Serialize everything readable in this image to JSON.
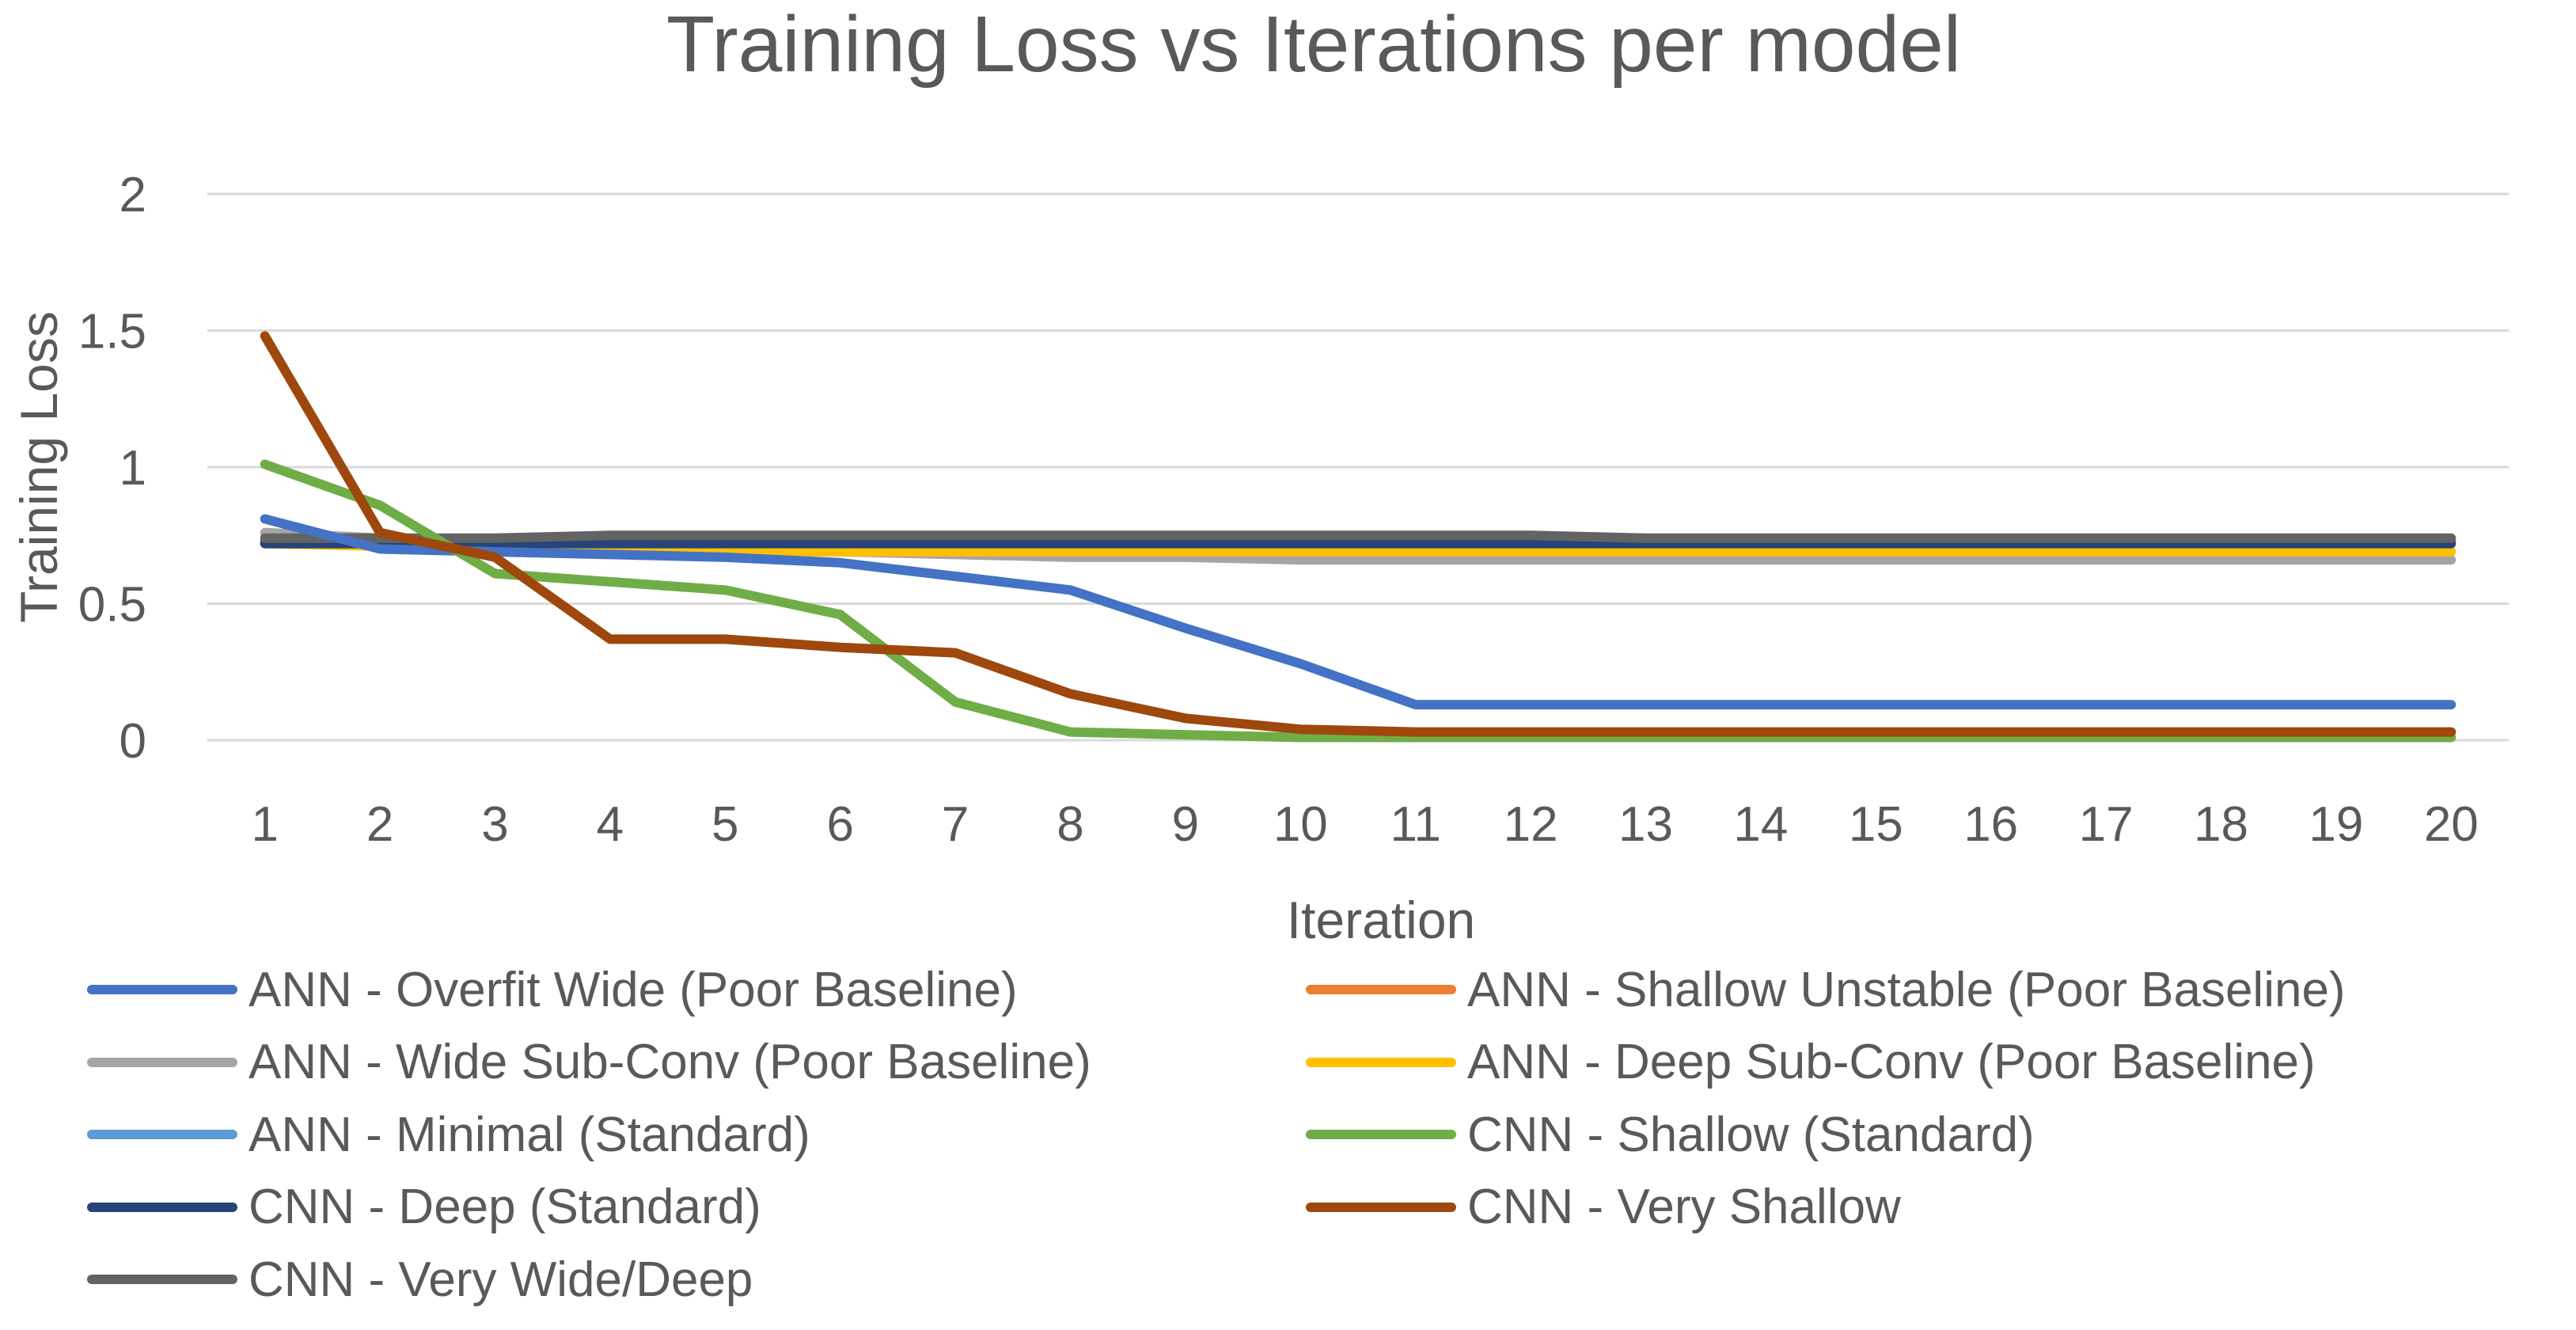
{
  "chart_data": {
    "type": "line",
    "title": "Training Loss vs Iterations per model",
    "xlabel": "Iteration",
    "ylabel": "Training Loss",
    "ylim": [
      0,
      2
    ],
    "yticks": [
      "0",
      "0.5",
      "1",
      "1.5",
      "2"
    ],
    "categories": [
      "1",
      "2",
      "3",
      "4",
      "5",
      "6",
      "7",
      "8",
      "9",
      "10",
      "11",
      "12",
      "13",
      "14",
      "15",
      "16",
      "17",
      "18",
      "19",
      "20"
    ],
    "grid": true,
    "legend_position": "bottom",
    "series": [
      {
        "name": "ANN - Overfit Wide (Poor Baseline)",
        "color": "#4472C4",
        "values": [
          0.81,
          0.7,
          0.69,
          0.68,
          0.67,
          0.65,
          0.6,
          0.55,
          0.41,
          0.28,
          0.13,
          0.13,
          0.13,
          0.13,
          0.13,
          0.13,
          0.13,
          0.13,
          0.13,
          0.13
        ]
      },
      {
        "name": "ANN - Shallow Unstable (Poor Baseline)",
        "color": "#ED7D31",
        "values": [
          0.73,
          0.73,
          0.73,
          0.73,
          0.73,
          0.73,
          0.73,
          0.73,
          0.73,
          0.73,
          0.73,
          0.73,
          0.73,
          0.73,
          0.73,
          0.73,
          0.73,
          0.73,
          0.73,
          0.73
        ]
      },
      {
        "name": "ANN - Wide Sub-Conv (Poor Baseline)",
        "color": "#A5A5A5",
        "values": [
          0.76,
          0.74,
          0.72,
          0.71,
          0.7,
          0.69,
          0.68,
          0.67,
          0.67,
          0.66,
          0.66,
          0.66,
          0.66,
          0.66,
          0.66,
          0.66,
          0.66,
          0.66,
          0.66,
          0.66
        ]
      },
      {
        "name": "ANN - Deep Sub-Conv (Poor Baseline)",
        "color": "#FFC000",
        "values": [
          0.72,
          0.71,
          0.7,
          0.7,
          0.69,
          0.69,
          0.69,
          0.69,
          0.69,
          0.69,
          0.69,
          0.69,
          0.69,
          0.69,
          0.69,
          0.69,
          0.69,
          0.69,
          0.69,
          0.69
        ]
      },
      {
        "name": "ANN - Minimal (Standard)",
        "color": "#5B9BD5",
        "values": [
          0.73,
          0.73,
          0.73,
          0.73,
          0.73,
          0.73,
          0.73,
          0.73,
          0.73,
          0.73,
          0.73,
          0.73,
          0.73,
          0.73,
          0.73,
          0.73,
          0.73,
          0.73,
          0.73,
          0.73
        ]
      },
      {
        "name": "CNN - Shallow (Standard)",
        "color": "#70AD47",
        "values": [
          1.01,
          0.86,
          0.61,
          0.58,
          0.55,
          0.46,
          0.14,
          0.03,
          0.02,
          0.01,
          0.01,
          0.01,
          0.01,
          0.01,
          0.01,
          0.01,
          0.01,
          0.01,
          0.01,
          0.01
        ]
      },
      {
        "name": "CNN - Deep (Standard)",
        "color": "#264478",
        "values": [
          0.72,
          0.72,
          0.72,
          0.72,
          0.72,
          0.72,
          0.72,
          0.72,
          0.72,
          0.72,
          0.72,
          0.72,
          0.72,
          0.72,
          0.72,
          0.72,
          0.72,
          0.72,
          0.72,
          0.72
        ]
      },
      {
        "name": "CNN - Very Shallow",
        "color": "#9E480E",
        "values": [
          1.48,
          0.76,
          0.67,
          0.37,
          0.37,
          0.34,
          0.32,
          0.17,
          0.08,
          0.04,
          0.03,
          0.03,
          0.03,
          0.03,
          0.03,
          0.03,
          0.03,
          0.03,
          0.03,
          0.03
        ]
      },
      {
        "name": "CNN - Very Wide/Deep",
        "color": "#636363",
        "values": [
          0.74,
          0.74,
          0.74,
          0.75,
          0.75,
          0.75,
          0.75,
          0.75,
          0.75,
          0.75,
          0.75,
          0.75,
          0.74,
          0.74,
          0.74,
          0.74,
          0.74,
          0.74,
          0.74,
          0.74
        ]
      }
    ]
  }
}
